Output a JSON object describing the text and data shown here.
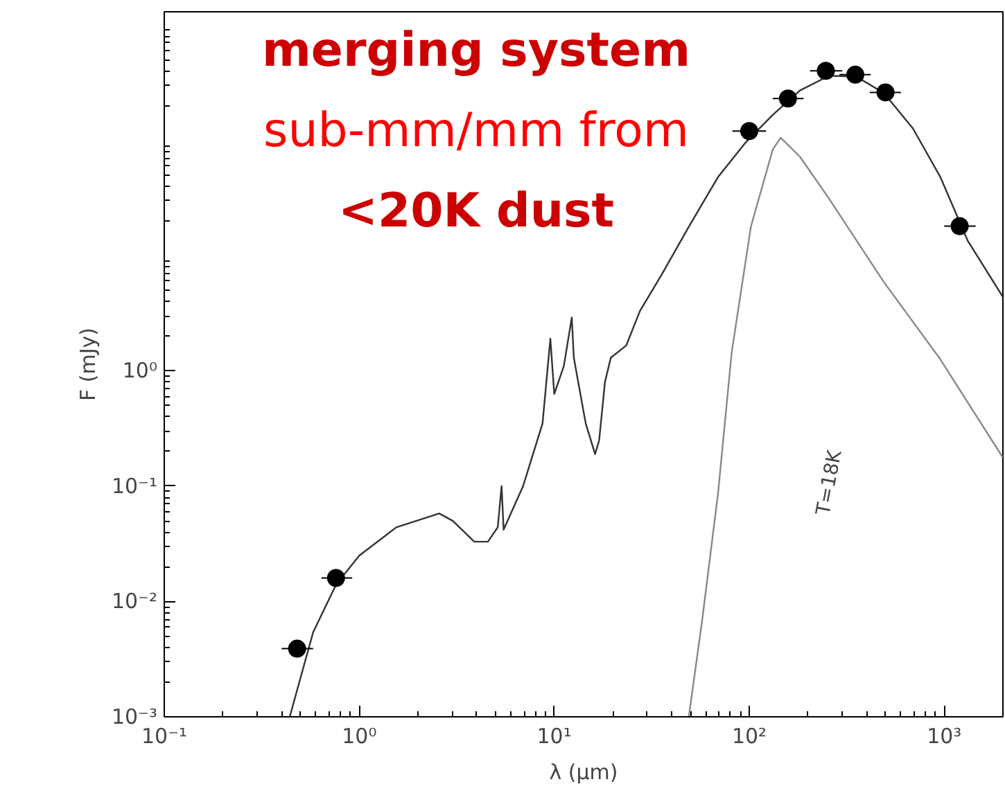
{
  "chart_data": {
    "type": "line",
    "xlabel": "λ (μm)",
    "ylabel": "F (mJy)",
    "log": "xy",
    "grid": false,
    "xlim": [
      0.1,
      2000
    ],
    "ylim": [
      0.001,
      1300
    ],
    "xticks": [
      {
        "value": 0.1,
        "label": "10⁻¹"
      },
      {
        "value": 1,
        "label": "10⁰"
      },
      {
        "value": 10,
        "label": "10¹"
      },
      {
        "value": 100,
        "label": "10²"
      },
      {
        "value": 1000,
        "label": "10³"
      }
    ],
    "yticks": [
      {
        "value": 0.001,
        "label": "10⁻³"
      },
      {
        "value": 0.01,
        "label": "10⁻²"
      },
      {
        "value": 0.1,
        "label": "10⁻¹"
      },
      {
        "value": 1,
        "label": "10⁰"
      }
    ],
    "annotations": [
      "merging system",
      "sub-mm/mm from",
      "<20K dust",
      "T=18K"
    ],
    "series": [
      {
        "color": "#333333",
        "x": [
          0.44,
          0.58,
          0.76,
          1.0,
          1.55,
          2.57,
          3.02,
          3.89,
          4.57,
          5.13,
          5.37,
          5.5,
          6.92,
          8.71,
          9.55,
          10.0,
          11.2,
          12.3,
          12.6,
          14.5,
          16.2,
          17.0,
          18.2,
          19.5,
          23.4,
          27.5,
          35.5,
          49.0,
          69.2,
          95.5,
          132,
          182,
          257,
          355,
          490,
          692,
          955,
          1318,
          1995
        ],
        "values": [
          0.001,
          0.0054,
          0.014,
          0.025,
          0.044,
          0.058,
          0.05,
          0.033,
          0.033,
          0.044,
          0.1,
          0.042,
          0.1,
          0.35,
          1.9,
          0.63,
          1.1,
          2.9,
          1.3,
          0.35,
          0.19,
          0.25,
          0.8,
          1.3,
          1.66,
          3.3,
          6.8,
          17.8,
          48,
          95,
          166,
          270,
          363,
          355,
          257,
          126,
          48,
          13.5,
          4.4
        ]
      },
      {
        "color": "#888888",
        "x": [
          49,
          57.5,
          69.2,
          81.3,
          102,
          132,
          145,
          182,
          257,
          490,
          955,
          1995
        ],
        "values": [
          0.001,
          0.0071,
          0.087,
          1.45,
          17.8,
          83,
          105,
          72,
          31,
          5.9,
          1.26,
          0.178
        ]
      },
      {
        "type": "scatter",
        "color": "#000000",
        "marker": "circle",
        "x": [
          0.48,
          0.76,
          100,
          158,
          247,
          350,
          500,
          1200
        ],
        "values": [
          0.0039,
          0.016,
          120,
          230,
          400,
          370,
          260,
          18
        ],
        "xerrors": [
          [
            0.4,
            0.58
          ],
          [
            0.64,
            0.92
          ],
          [
            82,
            122
          ],
          [
            132,
            190
          ],
          [
            205,
            300
          ],
          [
            290,
            420
          ],
          [
            415,
            600
          ],
          [
            1000,
            1450
          ]
        ]
      }
    ]
  }
}
